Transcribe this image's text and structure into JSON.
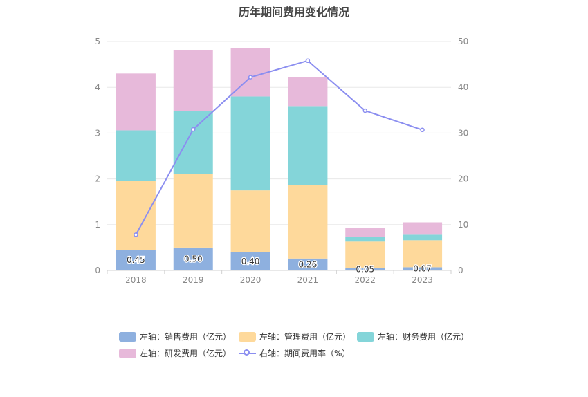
{
  "chart_data": {
    "type": "bar",
    "title": "历年期间费用变化情况",
    "categories": [
      "2018",
      "2019",
      "2020",
      "2021",
      "2022",
      "2023"
    ],
    "left_axis": {
      "ylim": [
        0,
        5
      ],
      "ticks": [
        "0",
        "1",
        "2",
        "3",
        "4",
        "5"
      ]
    },
    "right_axis": {
      "ylim": [
        0,
        50
      ],
      "ticks": [
        "0",
        "10",
        "20",
        "30",
        "40",
        "50"
      ]
    },
    "series": [
      {
        "name": "左轴：销售费用（亿元）",
        "type": "bar",
        "axis": "left",
        "color": "#8eb0df",
        "values": [
          0.45,
          0.5,
          0.4,
          0.26,
          0.05,
          0.07
        ],
        "labels": [
          "0.45",
          "0.50",
          "0.40",
          "0.26",
          "0.05",
          "0.07"
        ]
      },
      {
        "name": "左轴：管理费用（亿元）",
        "type": "bar",
        "axis": "left",
        "color": "#fed99b",
        "values": [
          1.51,
          1.61,
          1.35,
          1.6,
          0.58,
          0.59
        ]
      },
      {
        "name": "左轴：财务费用（亿元）",
        "type": "bar",
        "axis": "left",
        "color": "#84d5d9",
        "values": [
          1.1,
          1.37,
          2.05,
          1.73,
          0.11,
          0.12
        ]
      },
      {
        "name": "左轴：研发费用（亿元）",
        "type": "bar",
        "axis": "left",
        "color": "#e7b9da",
        "values": [
          1.24,
          1.33,
          1.06,
          0.63,
          0.19,
          0.27
        ]
      },
      {
        "name": "右轴：期间费用率（%）",
        "type": "line",
        "axis": "right",
        "color": "#8b8ef0",
        "values": [
          7.8,
          30.8,
          42.2,
          45.8,
          34.9,
          30.7
        ]
      }
    ],
    "legend_position": "bottom",
    "grid": true
  }
}
